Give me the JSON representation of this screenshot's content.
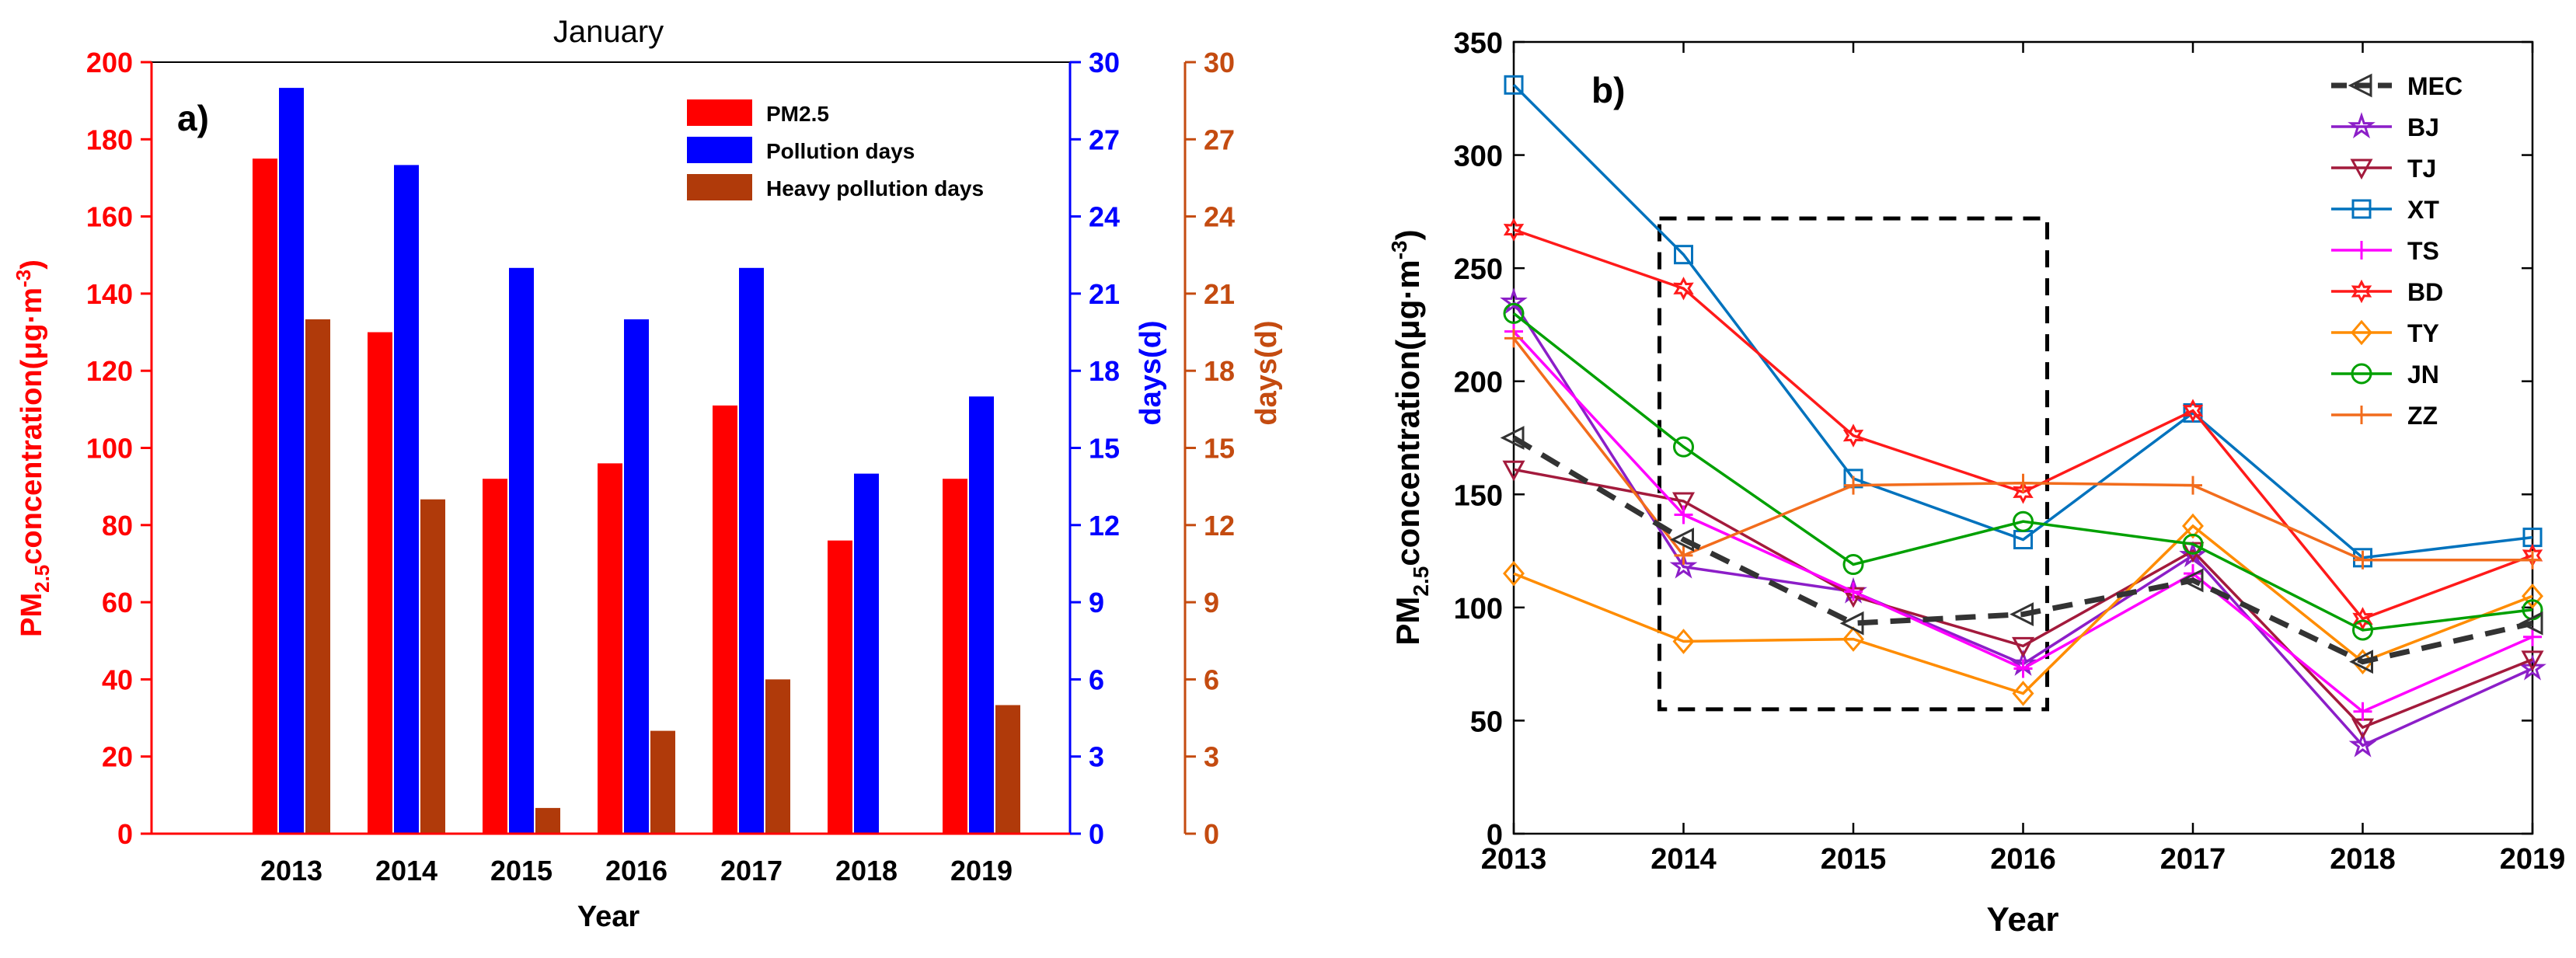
{
  "chart_data": [
    {
      "panel_label": "a)",
      "type": "bar",
      "title": "January",
      "categories": [
        "2013",
        "2014",
        "2015",
        "2016",
        "2017",
        "2018",
        "2019"
      ],
      "xlabel": "Year",
      "ylabel_left": {
        "main": "PM",
        "sub": "2.5",
        "rest": "concentration(μg·m",
        "sup": "-3",
        "close": ")"
      },
      "ylabel_right1": "days(d)",
      "ylabel_right2": "days(d)",
      "ylim_left": [
        0,
        200
      ],
      "ylim_right1": [
        0,
        30
      ],
      "ylim_right2": [
        0,
        30
      ],
      "yticks_left": [
        "0",
        "20",
        "40",
        "60",
        "80",
        "100",
        "120",
        "140",
        "160",
        "180",
        "200"
      ],
      "yticks_right1": [
        "0",
        "3",
        "6",
        "9",
        "12",
        "15",
        "18",
        "21",
        "24",
        "27",
        "30"
      ],
      "yticks_right2": [
        "0",
        "3",
        "6",
        "9",
        "12",
        "15",
        "18",
        "21",
        "24",
        "27",
        "30"
      ],
      "series": [
        {
          "name": "PM2.5",
          "axis": "left",
          "color": "#ff0000",
          "values": [
            175,
            130,
            92,
            96,
            111,
            76,
            92
          ]
        },
        {
          "name": "Pollution days",
          "axis": "right1",
          "color": "#0000ff",
          "values": [
            29,
            26,
            22,
            20,
            22,
            14,
            17
          ]
        },
        {
          "name": "Heavy pollution days",
          "axis": "right2",
          "color": "#b03a0a",
          "values": [
            20,
            13,
            1,
            4,
            6,
            0,
            5
          ]
        }
      ],
      "axis_colors": {
        "left": "#ff0000",
        "right1": "#0000ff",
        "right2": "#c44b10"
      },
      "legend_position": "top-right"
    },
    {
      "panel_label": "b)",
      "type": "line",
      "x": [
        "2013",
        "2014",
        "2015",
        "2016",
        "2017",
        "2018",
        "2019"
      ],
      "xlabel": "Year",
      "ylabel": {
        "main": "PM",
        "sub": "2.5",
        "rest": "concentration(μg·m",
        "sup": "-3",
        "close": ")"
      },
      "ylim": [
        0,
        350
      ],
      "yticks": [
        "0",
        "50",
        "100",
        "150",
        "200",
        "250",
        "300",
        "350"
      ],
      "series": [
        {
          "name": "MEC",
          "color": "#333333",
          "marker": "triangle-left",
          "dashed": true,
          "values": [
            175,
            130,
            93,
            97,
            112,
            76,
            93
          ]
        },
        {
          "name": "BJ",
          "color": "#8c1ec8",
          "marker": "star",
          "values": [
            235,
            118,
            107,
            75,
            123,
            39,
            73
          ]
        },
        {
          "name": "TJ",
          "color": "#a31a3c",
          "marker": "triangle-down",
          "values": [
            161,
            147,
            105,
            83,
            125,
            47,
            77
          ]
        },
        {
          "name": "XT",
          "color": "#0072bd",
          "marker": "square",
          "values": [
            331,
            256,
            157,
            130,
            186,
            122,
            131
          ]
        },
        {
          "name": "TS",
          "color": "#ff00ff",
          "marker": "plus",
          "values": [
            222,
            141,
            107,
            73,
            115,
            54,
            87
          ]
        },
        {
          "name": "BD",
          "color": "#ff1a1a",
          "marker": "hexagram",
          "values": [
            267,
            241,
            176,
            151,
            187,
            95,
            123
          ]
        },
        {
          "name": "TY",
          "color": "#ff8c00",
          "marker": "diamond",
          "values": [
            115,
            85,
            86,
            62,
            136,
            76,
            105
          ]
        },
        {
          "name": "JN",
          "color": "#00a000",
          "marker": "circle",
          "values": [
            230,
            171,
            119,
            138,
            128,
            90,
            99
          ]
        },
        {
          "name": "ZZ",
          "color": "#f26c1c",
          "marker": "plus",
          "values": [
            219,
            123,
            154,
            155,
            154,
            121,
            121
          ]
        }
      ],
      "highlight_box": {
        "x_from": "2014",
        "x_to": "2016",
        "y_from": 55,
        "y_to": 272
      },
      "legend_position": "top-right"
    }
  ]
}
